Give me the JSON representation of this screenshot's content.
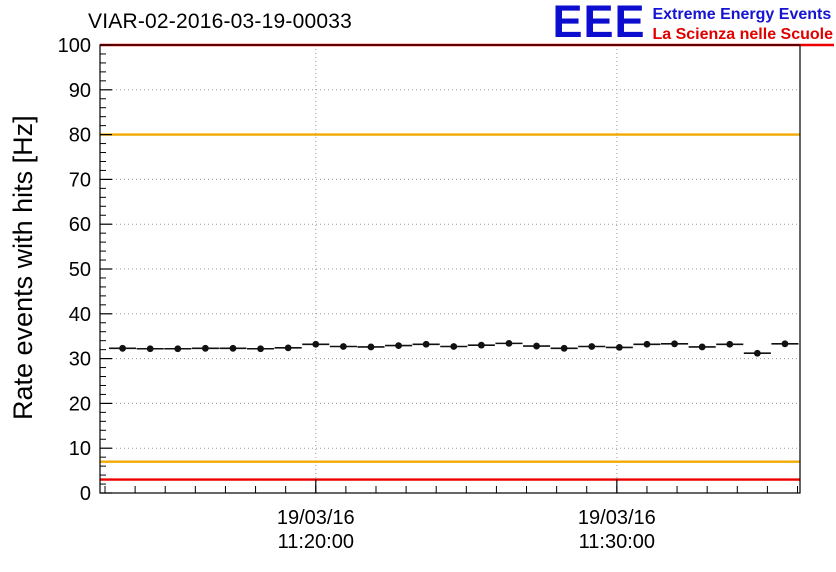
{
  "header": {
    "title": "VIAR-02-2016-03-19-00033",
    "logo": {
      "letters": "EEE",
      "line1": "Extreme Energy Events",
      "line2": "La Scienza nelle Scuole",
      "blue": "#0d0dcf",
      "red": "#e00000"
    }
  },
  "chart_data": {
    "type": "scatter",
    "title": "VIAR-02-2016-03-19-00033",
    "ylabel": "Rate events with hits [Hz]",
    "xlabel": "",
    "ylim": [
      0,
      100
    ],
    "y_major_ticks": [
      0,
      10,
      20,
      30,
      40,
      50,
      60,
      70,
      80,
      90,
      100
    ],
    "y_minor_step": 2,
    "grid": true,
    "x_axis": {
      "start": "11:12:50",
      "end": "11:36:05",
      "minor_tick_interval_s": 60,
      "major_ticks": [
        {
          "time": "11:20:00",
          "label_line1": "19/03/16",
          "label_line2": "11:20:00"
        },
        {
          "time": "11:30:00",
          "label_line1": "19/03/16",
          "label_line2": "11:30:00"
        }
      ]
    },
    "threshold_lines": [
      {
        "value": 100,
        "color": "#ee0000"
      },
      {
        "value": 80,
        "color": "#f2a900"
      },
      {
        "value": 7,
        "color": "#f2a900"
      },
      {
        "value": 3,
        "color": "#ee0000"
      }
    ],
    "series": [
      {
        "name": "rate-events-with-hits",
        "marker": "filled-circle",
        "color": "#111111",
        "x_error_s": 27,
        "points": [
          {
            "t": "11:13:35",
            "v": 32.3
          },
          {
            "t": "11:14:30",
            "v": 32.2
          },
          {
            "t": "11:15:25",
            "v": 32.2
          },
          {
            "t": "11:16:20",
            "v": 32.3
          },
          {
            "t": "11:17:15",
            "v": 32.3
          },
          {
            "t": "11:18:10",
            "v": 32.2
          },
          {
            "t": "11:19:05",
            "v": 32.4
          },
          {
            "t": "11:20:00",
            "v": 33.2
          },
          {
            "t": "11:20:55",
            "v": 32.7
          },
          {
            "t": "11:21:50",
            "v": 32.6
          },
          {
            "t": "11:22:45",
            "v": 32.9
          },
          {
            "t": "11:23:40",
            "v": 33.2
          },
          {
            "t": "11:24:35",
            "v": 32.7
          },
          {
            "t": "11:25:30",
            "v": 33.0
          },
          {
            "t": "11:26:25",
            "v": 33.4
          },
          {
            "t": "11:27:20",
            "v": 32.8
          },
          {
            "t": "11:28:15",
            "v": 32.3
          },
          {
            "t": "11:29:10",
            "v": 32.7
          },
          {
            "t": "11:30:05",
            "v": 32.5
          },
          {
            "t": "11:31:00",
            "v": 33.2
          },
          {
            "t": "11:31:55",
            "v": 33.3
          },
          {
            "t": "11:32:50",
            "v": 32.6
          },
          {
            "t": "11:33:45",
            "v": 33.2
          },
          {
            "t": "11:34:40",
            "v": 31.2
          },
          {
            "t": "11:35:35",
            "v": 33.3
          }
        ]
      }
    ]
  }
}
